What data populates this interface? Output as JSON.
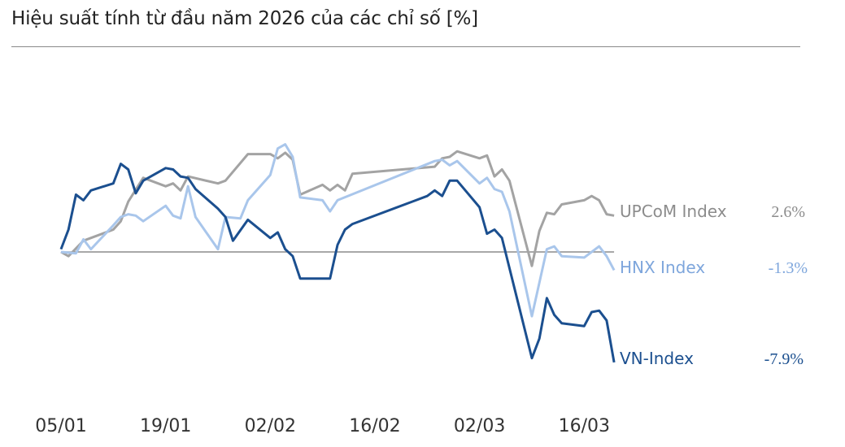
{
  "chart_data": {
    "type": "line",
    "title": "Hiệu suất tính từ đầu năm 2026 của các chỉ số [%]",
    "xlabel": "",
    "ylabel": "",
    "x_tick_labels": [
      "05/01",
      "19/01",
      "02/02",
      "16/02",
      "02/03",
      "16/03"
    ],
    "x_ticks": [
      "2026-01-05",
      "2026-01-19",
      "2026-02-02",
      "2026-02-16",
      "2026-03-02",
      "2026-03-16"
    ],
    "ylim": [
      -9,
      9
    ],
    "grid": false,
    "zero_line": true,
    "legend": "end-of-line labels",
    "series": [
      {
        "name": "UPCoM Index",
        "end_label": "2.6%",
        "color": "#a3a3a3",
        "label_color": "#8c8c8c",
        "points": [
          [
            "2026-01-05",
            0.0
          ],
          [
            "2026-01-06",
            -0.3
          ],
          [
            "2026-01-08",
            0.8
          ],
          [
            "2026-01-12",
            1.6
          ],
          [
            "2026-01-13",
            2.2
          ],
          [
            "2026-01-14",
            3.6
          ],
          [
            "2026-01-16",
            5.3
          ],
          [
            "2026-01-19",
            4.7
          ],
          [
            "2026-01-20",
            4.9
          ],
          [
            "2026-01-21",
            4.4
          ],
          [
            "2026-01-22",
            5.4
          ],
          [
            "2026-01-26",
            4.9
          ],
          [
            "2026-01-27",
            5.1
          ],
          [
            "2026-01-30",
            7.0
          ],
          [
            "2026-02-02",
            7.0
          ],
          [
            "2026-02-03",
            6.7
          ],
          [
            "2026-02-04",
            7.1
          ],
          [
            "2026-02-05",
            6.6
          ],
          [
            "2026-02-06",
            4.1
          ],
          [
            "2026-02-09",
            4.8
          ],
          [
            "2026-02-10",
            4.4
          ],
          [
            "2026-02-11",
            4.8
          ],
          [
            "2026-02-12",
            4.4
          ],
          [
            "2026-02-13",
            5.6
          ],
          [
            "2026-02-24",
            6.1
          ],
          [
            "2026-02-25",
            6.7
          ],
          [
            "2026-02-26",
            6.8
          ],
          [
            "2026-02-27",
            7.2
          ],
          [
            "2026-03-02",
            6.7
          ],
          [
            "2026-03-03",
            6.9
          ],
          [
            "2026-03-04",
            5.4
          ],
          [
            "2026-03-05",
            5.9
          ],
          [
            "2026-03-06",
            5.1
          ],
          [
            "2026-03-09",
            -1.0
          ],
          [
            "2026-03-10",
            1.5
          ],
          [
            "2026-03-11",
            2.8
          ],
          [
            "2026-03-12",
            2.7
          ],
          [
            "2026-03-13",
            3.4
          ],
          [
            "2026-03-16",
            3.7
          ],
          [
            "2026-03-17",
            4.0
          ],
          [
            "2026-03-18",
            3.7
          ],
          [
            "2026-03-19",
            2.7
          ],
          [
            "2026-03-20",
            2.6
          ]
        ]
      },
      {
        "name": "HNX Index",
        "end_label": "-1.3%",
        "color": "#a9c6eb",
        "label_color": "#7ea6dc",
        "points": [
          [
            "2026-01-05",
            0.0
          ],
          [
            "2026-01-07",
            -0.1
          ],
          [
            "2026-01-08",
            0.9
          ],
          [
            "2026-01-09",
            0.2
          ],
          [
            "2026-01-12",
            1.9
          ],
          [
            "2026-01-13",
            2.5
          ],
          [
            "2026-01-14",
            2.7
          ],
          [
            "2026-01-15",
            2.6
          ],
          [
            "2026-01-16",
            2.2
          ],
          [
            "2026-01-19",
            3.3
          ],
          [
            "2026-01-20",
            2.6
          ],
          [
            "2026-01-21",
            2.4
          ],
          [
            "2026-01-22",
            4.7
          ],
          [
            "2026-01-23",
            2.5
          ],
          [
            "2026-01-26",
            0.2
          ],
          [
            "2026-01-27",
            2.5
          ],
          [
            "2026-01-29",
            2.4
          ],
          [
            "2026-01-30",
            3.7
          ],
          [
            "2026-02-02",
            5.5
          ],
          [
            "2026-02-03",
            7.4
          ],
          [
            "2026-02-04",
            7.7
          ],
          [
            "2026-02-05",
            6.8
          ],
          [
            "2026-02-06",
            3.9
          ],
          [
            "2026-02-09",
            3.7
          ],
          [
            "2026-02-10",
            2.9
          ],
          [
            "2026-02-11",
            3.7
          ],
          [
            "2026-02-24",
            6.5
          ],
          [
            "2026-02-25",
            6.6
          ],
          [
            "2026-02-26",
            6.2
          ],
          [
            "2026-02-27",
            6.5
          ],
          [
            "2026-03-02",
            4.9
          ],
          [
            "2026-03-03",
            5.3
          ],
          [
            "2026-03-04",
            4.5
          ],
          [
            "2026-03-05",
            4.3
          ],
          [
            "2026-03-06",
            2.9
          ],
          [
            "2026-03-09",
            -4.6
          ],
          [
            "2026-03-11",
            0.2
          ],
          [
            "2026-03-12",
            0.4
          ],
          [
            "2026-03-13",
            -0.3
          ],
          [
            "2026-03-16",
            -0.4
          ],
          [
            "2026-03-18",
            0.4
          ],
          [
            "2026-03-19",
            -0.3
          ],
          [
            "2026-03-20",
            -1.3
          ]
        ]
      },
      {
        "name": "VN-Index",
        "end_label": "-7.9%",
        "color": "#1b4f8f",
        "label_color": "#1b4f8f",
        "points": [
          [
            "2026-01-05",
            0.2
          ],
          [
            "2026-01-06",
            1.6
          ],
          [
            "2026-01-07",
            4.1
          ],
          [
            "2026-01-08",
            3.7
          ],
          [
            "2026-01-09",
            4.4
          ],
          [
            "2026-01-12",
            4.9
          ],
          [
            "2026-01-13",
            6.3
          ],
          [
            "2026-01-14",
            5.9
          ],
          [
            "2026-01-15",
            4.2
          ],
          [
            "2026-01-16",
            5.1
          ],
          [
            "2026-01-19",
            6.0
          ],
          [
            "2026-01-20",
            5.9
          ],
          [
            "2026-01-21",
            5.4
          ],
          [
            "2026-01-22",
            5.3
          ],
          [
            "2026-01-23",
            4.5
          ],
          [
            "2026-01-26",
            3.1
          ],
          [
            "2026-01-27",
            2.5
          ],
          [
            "2026-01-28",
            0.8
          ],
          [
            "2026-01-30",
            2.3
          ],
          [
            "2026-02-02",
            1.0
          ],
          [
            "2026-02-03",
            1.4
          ],
          [
            "2026-02-04",
            0.2
          ],
          [
            "2026-02-05",
            -0.3
          ],
          [
            "2026-02-06",
            -1.9
          ],
          [
            "2026-02-10",
            -1.9
          ],
          [
            "2026-02-11",
            0.5
          ],
          [
            "2026-02-12",
            1.6
          ],
          [
            "2026-02-13",
            2.0
          ],
          [
            "2026-02-23",
            4.0
          ],
          [
            "2026-02-24",
            4.4
          ],
          [
            "2026-02-25",
            4.0
          ],
          [
            "2026-02-26",
            5.1
          ],
          [
            "2026-02-27",
            5.1
          ],
          [
            "2026-03-02",
            3.2
          ],
          [
            "2026-03-03",
            1.3
          ],
          [
            "2026-03-04",
            1.6
          ],
          [
            "2026-03-05",
            1.0
          ],
          [
            "2026-03-09",
            -7.6
          ],
          [
            "2026-03-10",
            -6.2
          ],
          [
            "2026-03-11",
            -3.3
          ],
          [
            "2026-03-12",
            -4.5
          ],
          [
            "2026-03-13",
            -5.1
          ],
          [
            "2026-03-16",
            -5.3
          ],
          [
            "2026-03-17",
            -4.3
          ],
          [
            "2026-03-18",
            -4.2
          ],
          [
            "2026-03-19",
            -4.9
          ],
          [
            "2026-03-20",
            -7.9
          ]
        ]
      }
    ]
  }
}
